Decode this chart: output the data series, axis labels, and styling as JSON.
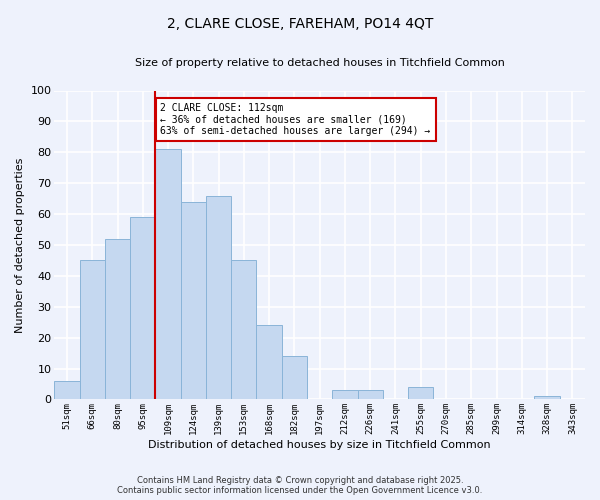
{
  "title": "2, CLARE CLOSE, FAREHAM, PO14 4QT",
  "subtitle": "Size of property relative to detached houses in Titchfield Common",
  "xlabel": "Distribution of detached houses by size in Titchfield Common",
  "ylabel": "Number of detached properties",
  "categories": [
    "51sqm",
    "66sqm",
    "80sqm",
    "95sqm",
    "109sqm",
    "124sqm",
    "139sqm",
    "153sqm",
    "168sqm",
    "182sqm",
    "197sqm",
    "212sqm",
    "226sqm",
    "241sqm",
    "255sqm",
    "270sqm",
    "285sqm",
    "299sqm",
    "314sqm",
    "328sqm",
    "343sqm"
  ],
  "values": [
    6,
    45,
    52,
    59,
    81,
    64,
    66,
    45,
    24,
    14,
    0,
    3,
    3,
    0,
    4,
    0,
    0,
    0,
    0,
    1,
    0
  ],
  "bar_color": "#c5d8f0",
  "bar_edge_color": "#8ab4d8",
  "vline_x_index": 4,
  "vline_color": "#cc0000",
  "annotation_text": "2 CLARE CLOSE: 112sqm\n← 36% of detached houses are smaller (169)\n63% of semi-detached houses are larger (294) →",
  "annotation_box_color": "#ffffff",
  "annotation_box_edge": "#cc0000",
  "ylim": [
    0,
    100
  ],
  "yticks": [
    0,
    10,
    20,
    30,
    40,
    50,
    60,
    70,
    80,
    90,
    100
  ],
  "background_color": "#eef2fc",
  "grid_color": "#ffffff",
  "footnote1": "Contains HM Land Registry data © Crown copyright and database right 2025.",
  "footnote2": "Contains public sector information licensed under the Open Government Licence v3.0."
}
